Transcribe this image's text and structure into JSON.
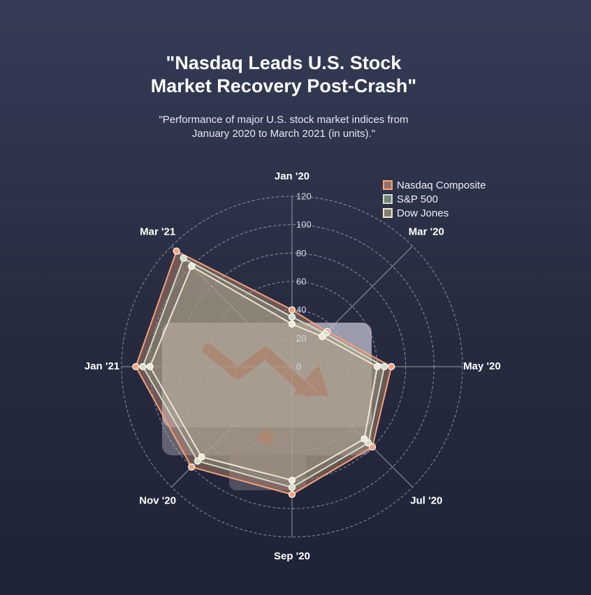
{
  "title_lines": [
    "\"Nasdaq Leads U.S. Stock",
    "Market Recovery Post-Crash\""
  ],
  "subtitle_lines": [
    "\"Performance of major U.S. stock market indices from",
    "January 2020 to March 2021 (in units).\""
  ],
  "chart_data": {
    "type": "radar",
    "categories": [
      "Jan '20",
      "Mar '20",
      "May '20",
      "Jul '20",
      "Sep '20",
      "Nov '20",
      "Jan '21",
      "Mar '21"
    ],
    "rlim": [
      0,
      120
    ],
    "r_ticks": [
      0,
      20,
      40,
      60,
      80,
      100,
      120
    ],
    "grid": true,
    "legend_position": "top-right",
    "series": [
      {
        "name": "Nasdaq Composite",
        "values": [
          40,
          35,
          70,
          80,
          90,
          100,
          110,
          115
        ],
        "color": "#f2a27d"
      },
      {
        "name": "S&P 500",
        "values": [
          35,
          33,
          65,
          76,
          85,
          94,
          105,
          108
        ],
        "color": "#cfe0c8"
      },
      {
        "name": "Dow Jones",
        "values": [
          30,
          30,
          60,
          72,
          80,
          90,
          100,
          100
        ],
        "color": "#f0e7cf"
      }
    ]
  },
  "watermark_icon": "laptop-stock-decline-icon"
}
